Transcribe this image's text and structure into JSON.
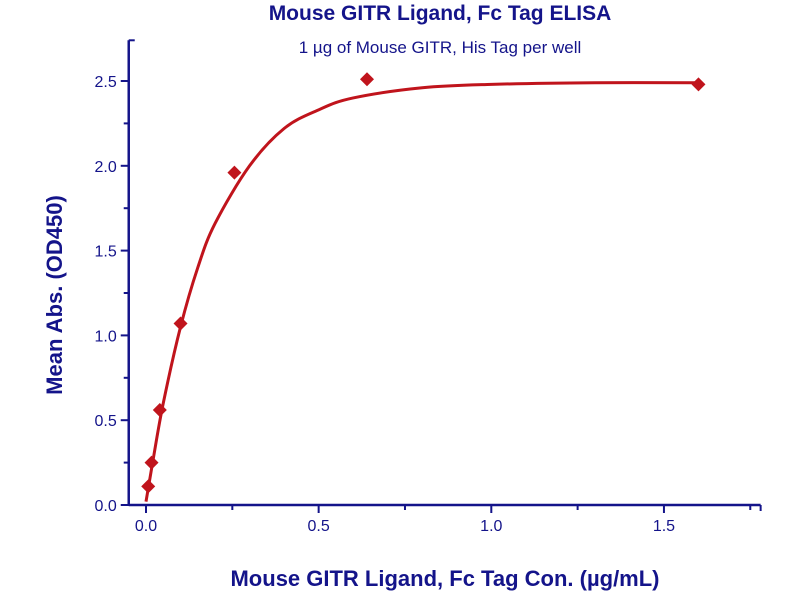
{
  "chart_data": {
    "type": "scatter",
    "title": "Mouse GITR Ligand, Fc Tag ELISA",
    "subtitle": "1 µg of Mouse GITR, His Tag per well",
    "xlabel": "Mouse GITR Ligand, Fc Tag Con. (µg/mL)",
    "ylabel": "Mean Abs. (OD450)",
    "xlim": [
      -0.05,
      1.78
    ],
    "ylim": [
      0,
      2.74
    ],
    "xticks": [
      "0.0",
      "0.5",
      "1.0",
      "1.5"
    ],
    "yticks": [
      "0.0",
      "0.5",
      "1.0",
      "1.5",
      "2.0",
      "2.5"
    ],
    "grid": false,
    "colors": {
      "axis": "#14148a",
      "series": "#c0141c"
    },
    "points": {
      "x": [
        0.0064,
        0.016,
        0.04,
        0.1,
        0.256,
        0.64,
        1.6
      ],
      "y": [
        0.11,
        0.25,
        0.56,
        1.07,
        1.96,
        2.51,
        2.48
      ]
    },
    "fit_curve": {
      "x": [
        0,
        0.02,
        0.05,
        0.1,
        0.15,
        0.2,
        0.3,
        0.4,
        0.5,
        0.6,
        0.8,
        1.0,
        1.3,
        1.6
      ],
      "y": [
        0.02,
        0.26,
        0.6,
        1.05,
        1.4,
        1.66,
        2.0,
        2.22,
        2.33,
        2.4,
        2.46,
        2.48,
        2.49,
        2.49
      ]
    }
  }
}
